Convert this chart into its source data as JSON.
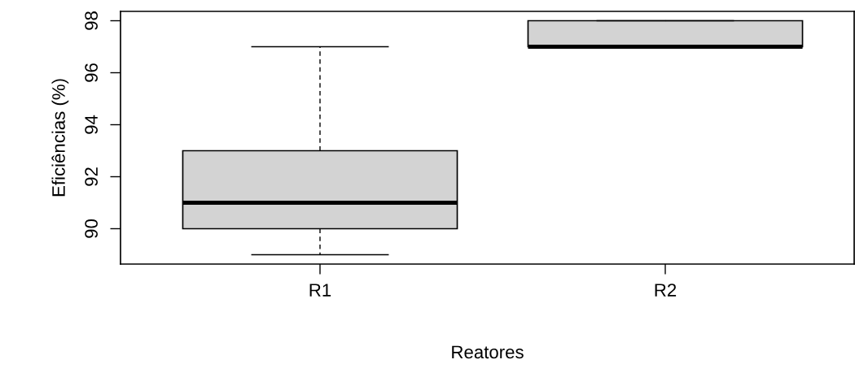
{
  "chart_data": {
    "type": "box",
    "xlabel": "Reatores",
    "ylabel": "Eficiências (%)",
    "categories": [
      "R1",
      "R2"
    ],
    "boxes": [
      {
        "low": 89,
        "q1": 90,
        "median": 91,
        "q3": 93,
        "high": 97
      },
      {
        "low": 97,
        "q1": 97,
        "median": 97,
        "q3": 98,
        "high": 98
      }
    ],
    "color": "#d3d3d3",
    "ylim": [
      88.64,
      98.36
    ],
    "yticks": [
      90,
      92,
      94,
      96,
      98
    ],
    "grid": false,
    "legend": false
  }
}
